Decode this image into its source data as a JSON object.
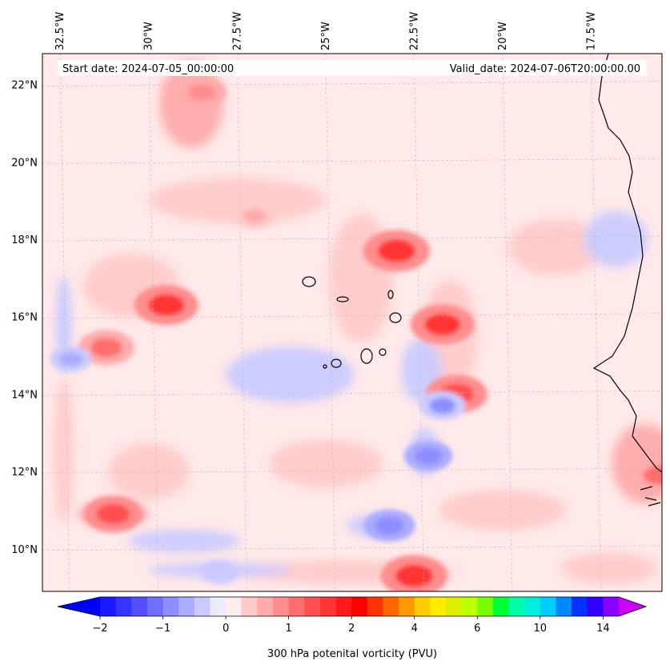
{
  "header": {
    "start_label": "Start date: 2024-07-05_00:00:00",
    "valid_label": "Valid_date: 2024-07-06T20:00:00.00"
  },
  "chart_data": {
    "type": "heatmap",
    "title": "",
    "variable": "300 hPa potential vorticity",
    "units": "PVU",
    "colorbar_label": "300 hPa potenital vorticity (PVU)",
    "colorbar_tick_labels": [
      "−2",
      "−1",
      "0",
      "1",
      "2",
      "4",
      "6",
      "10",
      "14"
    ],
    "colorbar_levels": [
      -2,
      -1.75,
      -1.5,
      -1.25,
      -1,
      -0.75,
      -0.5,
      -0.25,
      0,
      0.25,
      0.5,
      0.75,
      1,
      1.25,
      1.5,
      1.75,
      2,
      2.5,
      3,
      3.5,
      4,
      4.5,
      5,
      5.5,
      6,
      7,
      8,
      9,
      10,
      11,
      12,
      13,
      14,
      15
    ],
    "colorbar_extend": "both",
    "colors": {
      "extend_low": "#0000ff",
      "extend_high": "#cc00ff",
      "bins": [
        "#1a1aff",
        "#3535ff",
        "#5050ff",
        "#6e6eff",
        "#8d8dff",
        "#ababff",
        "#cacaff",
        "#ececff",
        "#ffecec",
        "#ffcaca",
        "#ffabab",
        "#ff8d8d",
        "#ff6e6e",
        "#ff5050",
        "#ff3535",
        "#ff1a1a",
        "#ff0000",
        "#ff3300",
        "#ff6600",
        "#ff9900",
        "#ffcc00",
        "#ffee00",
        "#ddee00",
        "#bbff00",
        "#77ff00",
        "#00ff33",
        "#00ffaa",
        "#00eedd",
        "#00ccff",
        "#0088ff",
        "#0033ff",
        "#3300ff",
        "#8800ff"
      ],
      "coastline": "#000000",
      "gridline": "#bbbbbb"
    },
    "x_ticks": [
      "32.5°W",
      "30°W",
      "27.5°W",
      "25°W",
      "22.5°W",
      "20°W",
      "17.5°W"
    ],
    "y_ticks": [
      "22°N",
      "20°N",
      "18°N",
      "16°N",
      "14°N",
      "12°N",
      "10°N"
    ],
    "lon_range": [
      -33,
      -15.5
    ],
    "lat_range": [
      8.9,
      22.8
    ],
    "features": [
      {
        "name": "ridge-nw",
        "lon": -28.5,
        "lat": 21.8,
        "pv": 0.9
      },
      {
        "name": "band-north",
        "lon": -27.0,
        "lat": 18.6,
        "pv": 0.6
      },
      {
        "name": "west-max",
        "lon": -29.5,
        "lat": 16.3,
        "pv": 1.5
      },
      {
        "name": "west-arc",
        "lon": -31.2,
        "lat": 15.2,
        "pv": 1.2
      },
      {
        "name": "west-min",
        "lon": -32.2,
        "lat": 14.9,
        "pv": -0.6
      },
      {
        "name": "central-streak-max",
        "lon": -23.0,
        "lat": 17.7,
        "pv": 1.6
      },
      {
        "name": "central-streak-south",
        "lon": -21.7,
        "lat": 15.8,
        "pv": 1.5
      },
      {
        "name": "east-streak",
        "lon": -21.3,
        "lat": 14.0,
        "pv": 1.4
      },
      {
        "name": "east-min",
        "lon": -21.7,
        "lat": 13.7,
        "pv": -0.8
      },
      {
        "name": "min-12n",
        "lon": -22.1,
        "lat": 12.4,
        "pv": -0.9
      },
      {
        "name": "min-10-5n",
        "lon": -23.2,
        "lat": 10.6,
        "pv": -1.0
      },
      {
        "name": "sw-max",
        "lon": -31.0,
        "lat": 10.9,
        "pv": 1.3
      },
      {
        "name": "south-band-max",
        "lon": -22.5,
        "lat": 9.3,
        "pv": 1.6
      },
      {
        "name": "south-band-min",
        "lon": -28.0,
        "lat": 9.4,
        "pv": -0.5
      },
      {
        "name": "se-max",
        "lon": -15.6,
        "lat": 11.9,
        "pv": 1.1
      }
    ],
    "islands": "Cape Verde"
  }
}
